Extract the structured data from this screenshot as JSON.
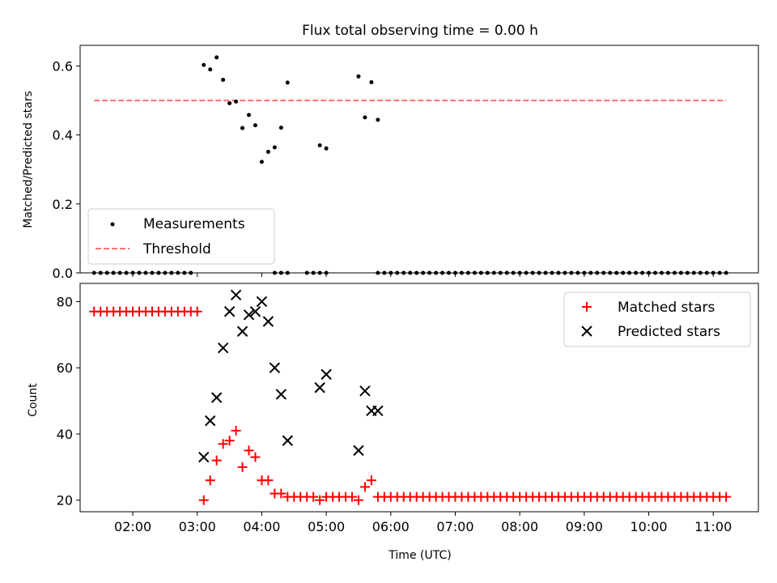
{
  "chart_data": [
    {
      "type": "scatter",
      "title": "Flux total observing time = 0.00 h",
      "ylabel": "Matched/Predicted stars",
      "xlabel": "",
      "ylim": [
        0,
        0.66
      ],
      "xlim": [
        "01:11",
        "11:42"
      ],
      "yticks": [
        "0.0",
        "0.2",
        "0.4",
        "0.6"
      ],
      "x_tick_labels_shown": false,
      "legend_position": "lower-left",
      "series": [
        {
          "name": "Measurements",
          "marker": "dot",
          "color": "#000000",
          "points": [
            [
              "03:06",
              0.603
            ],
            [
              "03:12",
              0.59
            ],
            [
              "03:18",
              0.625
            ],
            [
              "03:24",
              0.56
            ],
            [
              "03:30",
              0.492
            ],
            [
              "03:36",
              0.497
            ],
            [
              "03:42",
              0.42
            ],
            [
              "03:48",
              0.458
            ],
            [
              "03:54",
              0.428
            ],
            [
              "04:00",
              0.322
            ],
            [
              "04:06",
              0.351
            ],
            [
              "04:12",
              0.364
            ],
            [
              "04:18",
              0.421
            ],
            [
              "04:24",
              0.552
            ],
            [
              "04:54",
              0.37
            ],
            [
              "05:00",
              0.361
            ],
            [
              "05:30",
              0.57
            ],
            [
              "05:36",
              0.451
            ],
            [
              "05:42",
              0.553
            ],
            [
              "05:48",
              0.444
            ]
          ],
          "zero_runs": [
            [
              "01:24",
              "02:54",
              6
            ],
            [
              "04:12",
              "04:24",
              6
            ],
            [
              "04:42",
              "05:00",
              6
            ],
            [
              "05:48",
              "11:12",
              6
            ]
          ]
        },
        {
          "name": "Threshold",
          "marker": "dashed-line",
          "color": "#ff7070",
          "points": [
            [
              "01:24",
              0.5
            ],
            [
              "11:12",
              0.5
            ]
          ]
        }
      ]
    },
    {
      "type": "scatter",
      "title": "",
      "xlabel": "Time (UTC)",
      "ylabel": "Count",
      "ylim": [
        16.5,
        85.5
      ],
      "xlim": [
        "01:11",
        "11:42"
      ],
      "yticks": [
        "20",
        "40",
        "60",
        "80"
      ],
      "xticks": [
        "02:00",
        "03:00",
        "04:00",
        "05:00",
        "06:00",
        "07:00",
        "08:00",
        "09:00",
        "10:00",
        "11:00"
      ],
      "legend_position": "top-right",
      "series": [
        {
          "name": "Matched stars",
          "marker": "plus",
          "color": "#ff0000",
          "points": [
            [
              "03:06",
              20
            ],
            [
              "03:12",
              26
            ],
            [
              "03:18",
              32
            ],
            [
              "03:24",
              37
            ],
            [
              "03:30",
              38
            ],
            [
              "03:36",
              41
            ],
            [
              "03:42",
              30
            ],
            [
              "03:48",
              35
            ],
            [
              "03:54",
              33
            ],
            [
              "04:00",
              26
            ],
            [
              "04:06",
              26
            ],
            [
              "04:12",
              22
            ],
            [
              "04:18",
              22
            ],
            [
              "04:24",
              21
            ],
            [
              "04:54",
              20
            ],
            [
              "05:00",
              21
            ],
            [
              "05:30",
              20
            ],
            [
              "05:36",
              24
            ],
            [
              "05:42",
              26
            ]
          ],
          "runs": [
            [
              "01:24",
              "03:00",
              6,
              77
            ],
            [
              "04:30",
              "04:48",
              6,
              21
            ],
            [
              "05:06",
              "05:24",
              6,
              21
            ],
            [
              "05:48",
              "11:12",
              6,
              21
            ]
          ]
        },
        {
          "name": "Predicted stars",
          "marker": "x",
          "color": "#000000",
          "points": [
            [
              "03:06",
              33
            ],
            [
              "03:12",
              44
            ],
            [
              "03:18",
              51
            ],
            [
              "03:24",
              66
            ],
            [
              "03:30",
              77
            ],
            [
              "03:36",
              82
            ],
            [
              "03:42",
              71
            ],
            [
              "03:48",
              76
            ],
            [
              "03:54",
              77
            ],
            [
              "04:00",
              80
            ],
            [
              "04:06",
              74
            ],
            [
              "04:12",
              60
            ],
            [
              "04:18",
              52
            ],
            [
              "04:24",
              38
            ],
            [
              "04:54",
              54
            ],
            [
              "05:00",
              58
            ],
            [
              "05:30",
              35
            ],
            [
              "05:36",
              53
            ],
            [
              "05:42",
              47
            ],
            [
              "05:48",
              47
            ]
          ]
        }
      ]
    }
  ]
}
